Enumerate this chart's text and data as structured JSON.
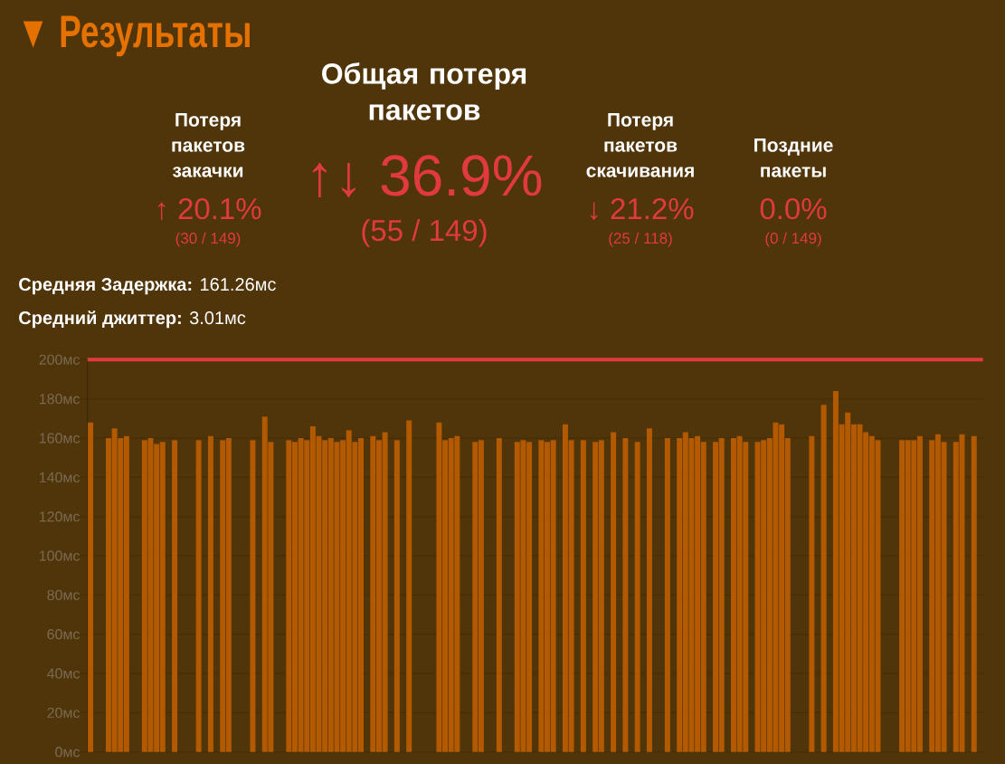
{
  "chart_data": [
    {
      "type": "other",
      "title": "▼ Результаты",
      "annotations": [
        "Потеря пакетов закачки",
        "↑ 20.1%",
        "(30 / 149)",
        "Общая потеря пакетов",
        "↑↓ 36.9%",
        "(55 / 149)",
        "Потеря пакетов скачивания",
        "↓ 21.2%",
        "(25 / 118)",
        "Поздние пакеты",
        "0.0%",
        "(0 / 149)",
        "**Средняя Задержка:** 161.26мс",
        "**Средний джиттер:** 3.01мс"
      ]
    },
    {
      "type": "bar",
      "categories": [
        null,
        null,
        null,
        null,
        null,
        null,
        null,
        null,
        null,
        null,
        null,
        null,
        null,
        null,
        null,
        null,
        null,
        null,
        null,
        null,
        null,
        null,
        null,
        null,
        null,
        null,
        null,
        null,
        null,
        null,
        null,
        null,
        null,
        null,
        null,
        null,
        null,
        null,
        null,
        null,
        null,
        null,
        null,
        null,
        null,
        null,
        null,
        null,
        null,
        null,
        null,
        null,
        null,
        null,
        null,
        null,
        null,
        null,
        null,
        null,
        null,
        null,
        null,
        null,
        null,
        null,
        null,
        null,
        null,
        null,
        null,
        null,
        null,
        null,
        null,
        null,
        null,
        null,
        null,
        null,
        null,
        null,
        null,
        null,
        null,
        null,
        null,
        null,
        null,
        null,
        null,
        null,
        null,
        null,
        null,
        null,
        null,
        null,
        null,
        null,
        null,
        null,
        null,
        null,
        null,
        null,
        null,
        null,
        null,
        null,
        null,
        null,
        null,
        null,
        null,
        null,
        null,
        null,
        null,
        null,
        null,
        null,
        null,
        null,
        null,
        null,
        null,
        null,
        null,
        null,
        null,
        null,
        null,
        null,
        null,
        null,
        null,
        null,
        null,
        null,
        null,
        null,
        null,
        null,
        null,
        null,
        null,
        null,
        null
      ],
      "values": [
        168,
        null,
        null,
        160,
        165,
        160,
        161,
        null,
        null,
        159,
        160,
        157,
        158,
        null,
        159,
        null,
        null,
        null,
        159,
        null,
        161,
        null,
        159,
        160,
        null,
        null,
        null,
        159,
        null,
        171,
        158,
        null,
        null,
        159,
        158,
        160,
        159,
        166,
        161,
        159,
        160,
        158,
        159,
        164,
        158,
        160,
        null,
        161,
        159,
        163,
        null,
        159,
        null,
        169,
        null,
        null,
        null,
        null,
        168,
        159,
        160,
        161,
        null,
        null,
        158,
        159,
        null,
        null,
        160,
        null,
        null,
        158,
        159,
        158,
        null,
        159,
        158,
        159,
        null,
        167,
        159,
        null,
        159,
        null,
        158,
        159,
        null,
        163,
        null,
        160,
        null,
        158,
        null,
        165,
        null,
        null,
        160,
        null,
        160,
        163,
        160,
        161,
        158,
        null,
        158,
        160,
        null,
        160,
        161,
        158,
        null,
        158,
        159,
        160,
        168,
        167,
        160,
        null,
        null,
        null,
        161,
        null,
        177,
        null,
        184,
        167,
        173,
        167,
        167,
        163,
        161,
        159,
        null,
        null,
        null,
        159,
        159,
        159,
        161,
        null,
        159,
        162,
        158,
        null,
        158,
        162,
        null,
        161,
        null
      ],
      "color": "#b35900",
      "ylim": [
        0,
        200
      ],
      "yticks": [
        {
          "value": 0,
          "label": "0мс"
        },
        {
          "value": 20,
          "label": "20мс"
        },
        {
          "value": 40,
          "label": "40мс"
        },
        {
          "value": 60,
          "label": "60мс"
        },
        {
          "value": 80,
          "label": "80мс"
        },
        {
          "value": 100,
          "label": "100мс"
        },
        {
          "value": 120,
          "label": "120мс"
        },
        {
          "value": 140,
          "label": "140мс"
        },
        {
          "value": 160,
          "label": "160мс"
        },
        {
          "value": 180,
          "label": "180мс"
        },
        {
          "value": 200,
          "label": "200мс"
        }
      ],
      "grid": "y",
      "tick_labels": "y",
      "ref_lines": [
        {
          "axis": "y",
          "value": 200,
          "color": "#e0393e"
        }
      ]
    }
  ]
}
